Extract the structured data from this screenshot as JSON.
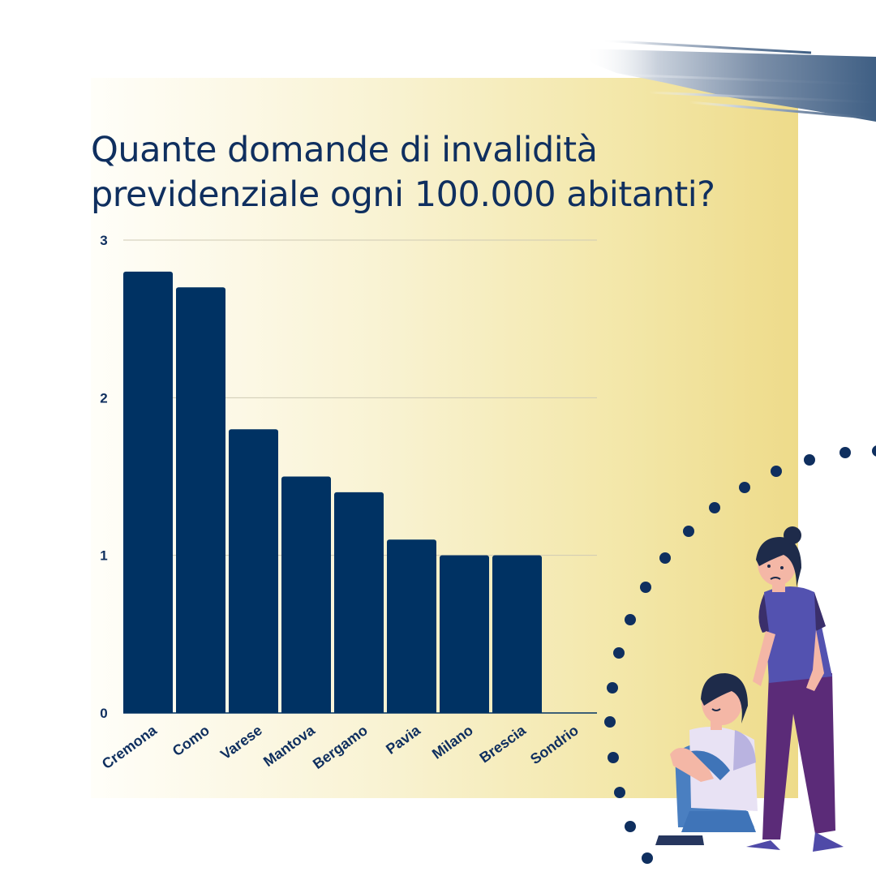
{
  "title": {
    "line1": "Quante domande di invalidità",
    "line2": "previdenziale ogni 100.000 abitanti?"
  },
  "colors": {
    "bar": "#003263",
    "title": "#0f2f5f",
    "tick": "#0f2f5f",
    "gridline": "#cfcab4",
    "dots": "#0f2f5f"
  },
  "chart_data": {
    "type": "bar",
    "categories": [
      "Cremona",
      "Como",
      "Varese",
      "Mantova",
      "Bergamo",
      "Pavia",
      "Milano",
      "Brescia",
      "Sondrio"
    ],
    "values": [
      2.8,
      2.7,
      1.8,
      1.5,
      1.4,
      1.1,
      1.0,
      1.0,
      0
    ],
    "yticks": [
      "0",
      "1",
      "2",
      "3"
    ],
    "ylim": [
      0,
      3
    ],
    "grid": true,
    "legend": "none"
  }
}
